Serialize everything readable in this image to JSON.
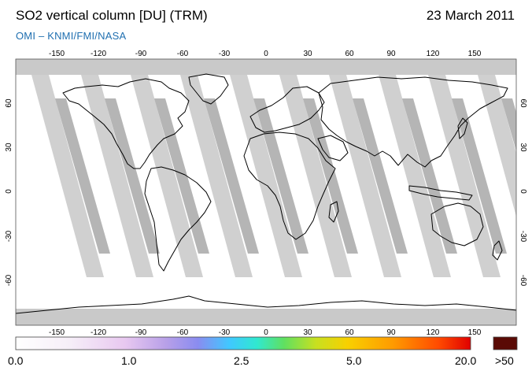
{
  "header": {
    "title": "SO2 vertical column [DU] (TRM)",
    "date": "23 March 2011",
    "credit": "OMI  –  KNMI/FMI/NASA"
  },
  "map": {
    "lon_ticks": [
      "-150",
      "-120",
      "-90",
      "-60",
      "-30",
      "0",
      "30",
      "60",
      "90",
      "120",
      "150"
    ],
    "lat_ticks_left": [
      "60",
      "30",
      "0",
      "-30",
      "-60"
    ],
    "lat_ticks_right": [
      "60",
      "30",
      "0",
      "-30",
      "-60"
    ],
    "colors": {
      "land_outline": "#000000",
      "polar_gap": "#c9c9c9",
      "swath_gap_light": "#d0d0d0",
      "swath_gap_dark": "#a8a8a8",
      "background": "#ffffff"
    }
  },
  "colorbar": {
    "labels": [
      "0.0",
      "1.0",
      "2.5",
      "5.0",
      "20.0",
      ">50"
    ],
    "overflow_color": "#5a0a05"
  }
}
